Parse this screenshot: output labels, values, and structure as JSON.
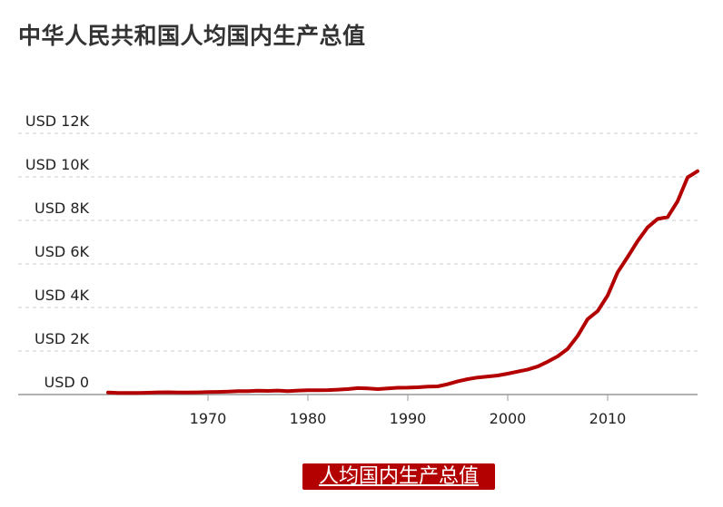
{
  "chart_data": {
    "type": "line",
    "title": "中华人民共和国人均国内生产总值",
    "xlabel": "",
    "ylabel": "",
    "xlim": [
      1960,
      2019
    ],
    "ylim": [
      0,
      12000
    ],
    "y_ticks": [
      {
        "value": 0,
        "label": "USD 0"
      },
      {
        "value": 2000,
        "label": "USD 2K"
      },
      {
        "value": 4000,
        "label": "USD 4K"
      },
      {
        "value": 6000,
        "label": "USD 6K"
      },
      {
        "value": 8000,
        "label": "USD 8K"
      },
      {
        "value": 10000,
        "label": "USD 10K"
      },
      {
        "value": 12000,
        "label": "USD 12K"
      }
    ],
    "x_ticks": [
      {
        "value": 1970,
        "label": "1970"
      },
      {
        "value": 1980,
        "label": "1980"
      },
      {
        "value": 1990,
        "label": "1990"
      },
      {
        "value": 2000,
        "label": "2000"
      },
      {
        "value": 2010,
        "label": "2010"
      }
    ],
    "grid": true,
    "legend": "bottom-center",
    "series": [
      {
        "name": "人均国内生产总值",
        "color": "#b30000",
        "x": [
          1960,
          1961,
          1962,
          1963,
          1964,
          1965,
          1966,
          1967,
          1968,
          1969,
          1970,
          1971,
          1972,
          1973,
          1974,
          1975,
          1976,
          1977,
          1978,
          1979,
          1980,
          1981,
          1982,
          1983,
          1984,
          1985,
          1986,
          1987,
          1988,
          1989,
          1990,
          1991,
          1992,
          1993,
          1994,
          1995,
          1996,
          1997,
          1998,
          1999,
          2000,
          2001,
          2002,
          2003,
          2004,
          2005,
          2006,
          2007,
          2008,
          2009,
          2010,
          2011,
          2012,
          2013,
          2014,
          2015,
          2016,
          2017,
          2018,
          2019
        ],
        "values": [
          90,
          76,
          70,
          74,
          85,
          98,
          104,
          97,
          91,
          100,
          113,
          119,
          132,
          157,
          160,
          178,
          165,
          185,
          156,
          183,
          195,
          197,
          203,
          225,
          251,
          294,
          281,
          252,
          284,
          311,
          318,
          333,
          366,
          377,
          473,
          610,
          709,
          782,
          829,
          873,
          959,
          1053,
          1149,
          1289,
          1509,
          1753,
          2099,
          2694,
          3468,
          3832,
          4550,
          5618,
          6317,
          7051,
          7679,
          8067,
          8148,
          8879,
          9977,
          10262
        ]
      }
    ]
  }
}
